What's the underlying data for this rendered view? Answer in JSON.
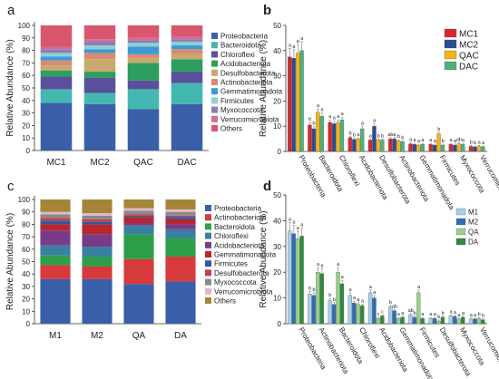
{
  "panels": {
    "a": "a",
    "b": "b",
    "c": "c",
    "d": "d"
  },
  "chart_data": [
    {
      "id": "a",
      "type": "bar",
      "stacked": true,
      "ylabel": "Relative Abundance (%)",
      "ylim": [
        0,
        100
      ],
      "yticks": [
        0,
        10,
        20,
        30,
        40,
        50,
        60,
        70,
        80,
        90,
        100
      ],
      "categories": [
        "MC1",
        "MC2",
        "QAC",
        "DAC"
      ],
      "legend_position": "right",
      "series": [
        {
          "name": "Proteobacteria",
          "color": "#3a5fa8",
          "values": [
            38,
            37,
            33,
            37
          ]
        },
        {
          "name": "Bacteroidota",
          "color": "#45b7b1",
          "values": [
            11,
            9,
            16,
            17
          ]
        },
        {
          "name": "Chloroflexi",
          "color": "#5a4f9c",
          "values": [
            10,
            12,
            7,
            9
          ]
        },
        {
          "name": "Acidobacteriota",
          "color": "#2e9e5f",
          "values": [
            5,
            5,
            14,
            10
          ]
        },
        {
          "name": "Desulfobacterota",
          "color": "#c9a96d",
          "values": [
            4,
            10,
            4,
            4
          ]
        },
        {
          "name": "Actinobacteriota",
          "color": "#d98a72",
          "values": [
            4,
            5,
            3,
            4
          ]
        },
        {
          "name": "Gemmatimonadota",
          "color": "#3c9ad6",
          "values": [
            3,
            3,
            6,
            3
          ]
        },
        {
          "name": "Firmicutes",
          "color": "#8fcfd0",
          "values": [
            3,
            3,
            3,
            3
          ]
        },
        {
          "name": "Myxococcota",
          "color": "#8b7db8",
          "values": [
            3,
            3,
            2,
            2
          ]
        },
        {
          "name": "Verrucomicrobiota",
          "color": "#d26c95",
          "values": [
            2,
            2,
            2,
            2
          ]
        },
        {
          "name": "Others",
          "color": "#d9566f",
          "values": [
            17,
            11,
            10,
            9
          ]
        }
      ]
    },
    {
      "id": "b",
      "type": "bar",
      "ylabel": "Relative Abundance (%)",
      "ylim": [
        0,
        50
      ],
      "yticks": [
        0,
        10,
        20,
        30,
        40,
        50
      ],
      "categories": [
        "Proteobacteria",
        "Bacteroidota",
        "Chloroflexi",
        "Acidobacteriota",
        "Desulfobacterota",
        "Actinobacteriota",
        "Gemmatimonadota",
        "Firmicutes",
        "Myxococcota",
        "Verrucomicrobiota"
      ],
      "legend_position": "top-right",
      "series": [
        {
          "name": "MC1",
          "color": "#d7262b",
          "values": [
            37.5,
            10.5,
            11.5,
            5.5,
            4.5,
            5.0,
            3.0,
            2.8,
            2.8,
            2.0
          ]
        },
        {
          "name": "MC2",
          "color": "#2b4c95",
          "values": [
            37.0,
            9.0,
            11.0,
            4.8,
            10.0,
            5.0,
            2.8,
            2.5,
            2.5,
            1.8
          ]
        },
        {
          "name": "QAC",
          "color": "#f2b31b",
          "values": [
            39.0,
            15.5,
            11.5,
            5.0,
            4.5,
            4.2,
            2.5,
            7.0,
            3.0,
            2.0
          ]
        },
        {
          "name": "DAC",
          "color": "#4fb07a",
          "values": [
            40.0,
            14.0,
            12.5,
            9.0,
            4.5,
            3.8,
            2.8,
            2.5,
            2.8,
            1.8
          ]
        }
      ],
      "annotations": [
        "a",
        "a",
        "a",
        "a",
        "b",
        "b",
        "a",
        "a",
        "a",
        "a",
        "a",
        "a",
        "b",
        "b",
        "a",
        "a",
        "a",
        "a",
        "b",
        "b",
        "ab",
        "a",
        "b",
        "b",
        "a",
        "a",
        "a",
        "a",
        "a",
        "a",
        "b",
        "b",
        "a",
        "a",
        "ab",
        "a",
        "b",
        "b",
        "a",
        "a",
        "ab",
        "a",
        "ab",
        "ab"
      ]
    },
    {
      "id": "c",
      "type": "bar",
      "stacked": true,
      "ylabel": "Relative Abundance (%)",
      "ylim": [
        0,
        100
      ],
      "yticks": [
        0,
        10,
        20,
        30,
        40,
        50,
        60,
        70,
        80,
        90,
        100
      ],
      "categories": [
        "M1",
        "M2",
        "QA",
        "DA"
      ],
      "legend_position": "right",
      "series": [
        {
          "name": "Proteobacteria",
          "color": "#3a5fa8",
          "values": [
            36,
            36,
            32,
            34
          ]
        },
        {
          "name": "Actinobacteriota",
          "color": "#d73a3a",
          "values": [
            11,
            10,
            20,
            20
          ]
        },
        {
          "name": "Bacteroidota",
          "color": "#2f9e4a",
          "values": [
            8,
            8,
            20,
            15
          ]
        },
        {
          "name": "Chloroflexi",
          "color": "#3a7fa0",
          "values": [
            8,
            8,
            7,
            7
          ]
        },
        {
          "name": "Acidobacteriota",
          "color": "#7a3a8a",
          "values": [
            12,
            10,
            2,
            4
          ]
        },
        {
          "name": "Gemmatimonadota",
          "color": "#b8262e",
          "values": [
            5,
            8,
            5,
            4
          ]
        },
        {
          "name": "Firmicutes",
          "color": "#3456a0",
          "values": [
            3,
            2,
            1,
            2
          ]
        },
        {
          "name": "Desulfobacterota",
          "color": "#c0404e",
          "values": [
            2,
            2,
            1,
            1
          ]
        },
        {
          "name": "Myxococcota",
          "color": "#8a8a8a",
          "values": [
            3,
            3,
            3,
            3
          ]
        },
        {
          "name": "Verrucomicrobiota",
          "color": "#e3b7c8",
          "values": [
            2,
            2,
            2,
            2
          ]
        },
        {
          "name": "Others",
          "color": "#a6853a",
          "values": [
            10,
            11,
            7,
            8
          ]
        }
      ]
    },
    {
      "id": "d",
      "type": "bar",
      "ylabel": "Relative Abundance (%)",
      "ylim": [
        0,
        50
      ],
      "yticks": [
        0,
        10,
        20,
        30,
        40,
        50
      ],
      "categories": [
        "Proteobacteria",
        "Actinobacteriota",
        "Bacteroidota",
        "Chloroflexi",
        "Acidobacteriota",
        "Gemmatimonadota",
        "Firmicutes",
        "Desulfobacterota",
        "Myxococcota",
        "Verrucomicrobiota"
      ],
      "legend_position": "top-right",
      "series": [
        {
          "name": "M1",
          "color": "#a8cfe8",
          "values": [
            36,
            11.5,
            9,
            11,
            12,
            6.5,
            3.5,
            2,
            3,
            1.8
          ]
        },
        {
          "name": "M2",
          "color": "#2f6db5",
          "values": [
            35,
            11,
            7.5,
            8,
            10,
            5,
            2.5,
            2,
            2.8,
            1.8
          ]
        },
        {
          "name": "QA",
          "color": "#98d08a",
          "values": [
            33,
            20,
            20,
            7.5,
            2,
            2,
            12,
            1,
            1.8,
            2
          ]
        },
        {
          "name": "DA",
          "color": "#2e8a3e",
          "values": [
            34,
            19.5,
            15.5,
            7,
            3,
            2.5,
            2,
            2.5,
            2.5,
            1.5
          ]
        }
      ],
      "annotations": [
        "a",
        "a",
        "a",
        "a",
        "b",
        "b",
        "a",
        "a",
        "b",
        "b",
        "a",
        "a",
        "a",
        "a",
        "a",
        "a",
        "a",
        "a",
        "c",
        "c",
        "b",
        "ab",
        "a",
        "a",
        "ab",
        "b",
        "a",
        "a",
        "a",
        "a",
        "b",
        "b",
        "a",
        "a",
        "a",
        "a",
        "a",
        "a",
        "b",
        "b"
      ]
    }
  ]
}
